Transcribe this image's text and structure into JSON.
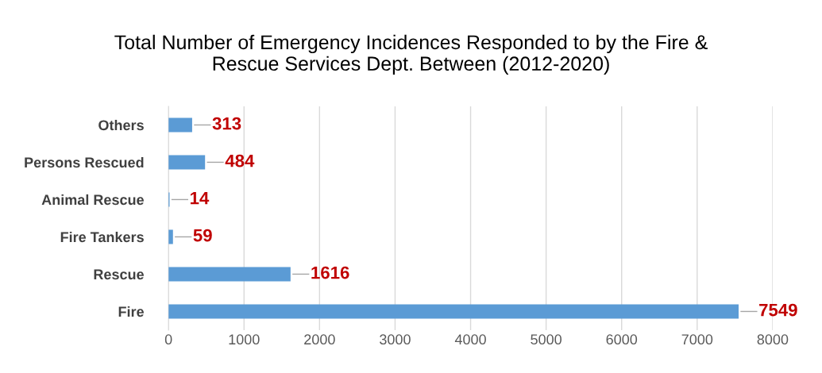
{
  "chart_data": {
    "type": "bar",
    "orientation": "horizontal",
    "title": "Total Number of Emergency Incidences Responded to by the Fire &\nRescue Services Dept. Between (2012-2020)",
    "categories": [
      "Others",
      "Persons Rescued",
      "Animal Rescue",
      "Fire Tankers",
      "Rescue",
      "Fire"
    ],
    "series": [
      {
        "color": "#5b9bd5",
        "values": [
          313,
          484,
          14,
          59,
          1616,
          7549
        ]
      }
    ],
    "xlim": [
      0,
      8000
    ],
    "xticks": [
      0,
      1000,
      2000,
      3000,
      4000,
      5000,
      6000,
      7000,
      8000
    ],
    "grid": "x",
    "data_labels": true,
    "legend": false
  }
}
